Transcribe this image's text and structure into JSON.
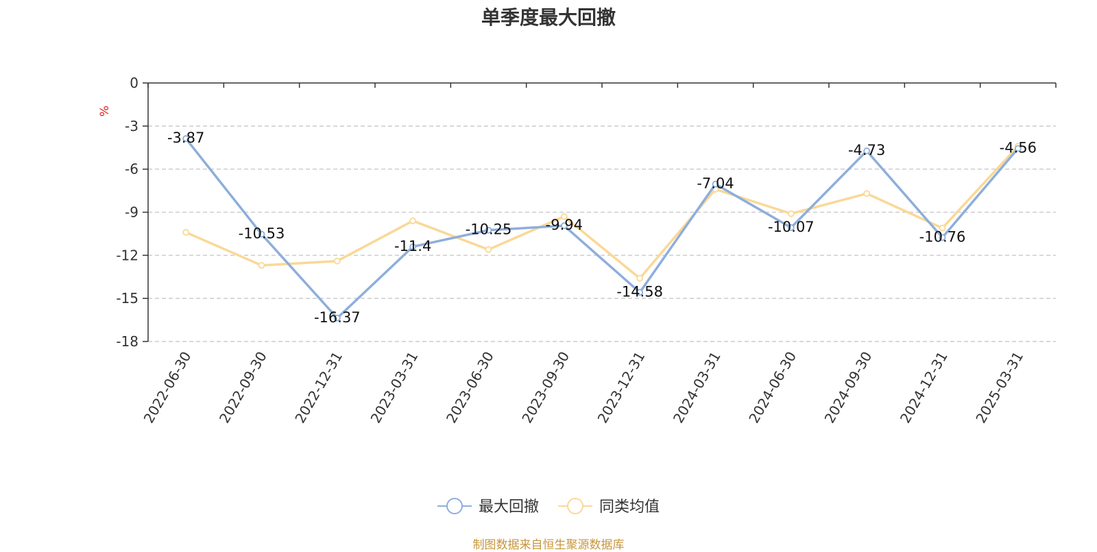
{
  "chart_data": {
    "type": "line",
    "title": "单季度最大回撤",
    "ylabel": "%",
    "ylim": [
      -18,
      0
    ],
    "yticks": [
      0,
      -3,
      -6,
      -9,
      -12,
      -15,
      -18
    ],
    "grid": true,
    "legend_position": "bottom-center",
    "categories": [
      "2022-06-30",
      "2022-09-30",
      "2022-12-31",
      "2023-03-31",
      "2023-06-30",
      "2023-09-30",
      "2023-12-31",
      "2024-03-31",
      "2024-06-30",
      "2024-09-30",
      "2024-12-31",
      "2025-03-31"
    ],
    "series": [
      {
        "name": "最大回撤",
        "color": "#8eaedb",
        "values": [
          -3.87,
          -10.53,
          -16.37,
          -11.4,
          -10.25,
          -9.94,
          -14.58,
          -7.04,
          -10.07,
          -4.73,
          -10.76,
          -4.56
        ],
        "labels": [
          "-3.87",
          "-10.53",
          "-16.37",
          "-11.4",
          "-10.25",
          "-9.94",
          "-14.58",
          "-7.04",
          "-10.07",
          "-4.73",
          "-10.76",
          "-4.56"
        ]
      },
      {
        "name": "同类均值",
        "color": "#fad896",
        "values": [
          -10.4,
          -12.7,
          -12.4,
          -9.6,
          -11.6,
          -9.3,
          -13.6,
          -7.4,
          -9.1,
          -7.7,
          -10.1,
          -4.4
        ]
      }
    ]
  },
  "source_note": "制图数据来自恒生聚源数据库",
  "colors": {
    "axis": "#333333",
    "grid": "#cccccc",
    "ylabel": "#e02020"
  }
}
